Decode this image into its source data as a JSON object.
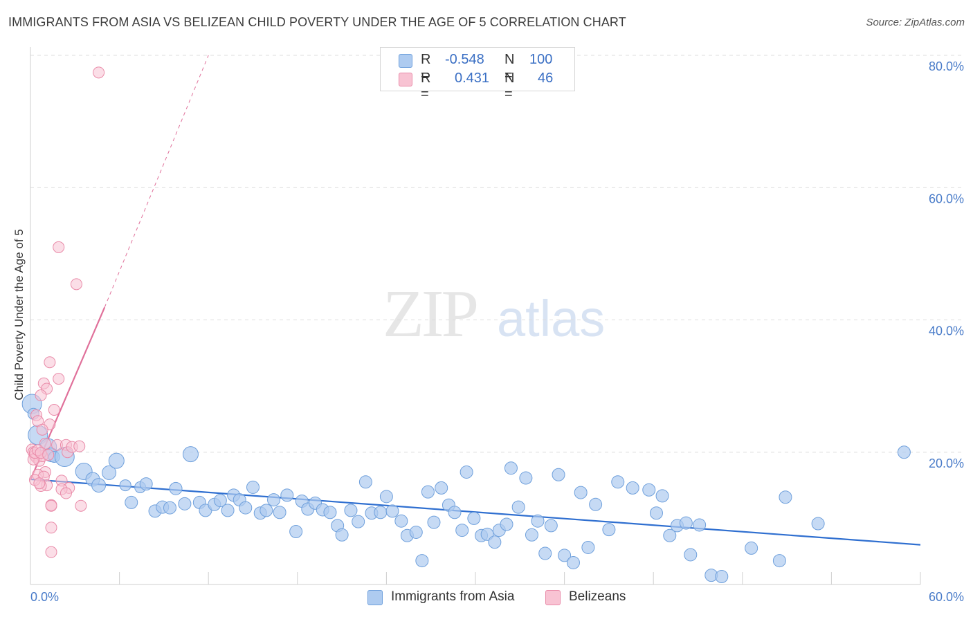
{
  "title": "IMMIGRANTS FROM ASIA VS BELIZEAN CHILD POVERTY UNDER THE AGE OF 5 CORRELATION CHART",
  "source": "Source: ZipAtlas.com",
  "watermark": {
    "zip": "ZIP",
    "atlas": "atlas"
  },
  "legend": {
    "rows": [
      {
        "r_label": "R =",
        "r_value": "-0.548",
        "n_label": "N =",
        "n_value": "100"
      },
      {
        "r_label": "R =",
        "r_value": "0.431",
        "n_label": "N =",
        "n_value": "46"
      }
    ]
  },
  "bottom_legend": {
    "asia": "Immigrants from Asia",
    "belize": "Belizeans"
  },
  "colors": {
    "asia_fill": "#aecbf0",
    "asia_stroke": "#6fa0dc",
    "asia_line": "#2f6fd0",
    "belize_fill": "#f8c3d3",
    "belize_stroke": "#e98aa8",
    "belize_line": "#e0709a",
    "grid": "#dcdcdc",
    "tick_text": "#4a7cc9"
  },
  "chart_data": {
    "type": "scatter",
    "xlabel": "",
    "ylabel": "Child Poverty Under the Age of 5",
    "xlim": [
      0,
      60
    ],
    "ylim": [
      0,
      80
    ],
    "x_ticks": [
      "0.0%",
      "60.0%"
    ],
    "y_ticks": [
      "20.0%",
      "40.0%",
      "60.0%",
      "80.0%"
    ],
    "grid": true,
    "legend_position": "top-center",
    "series": [
      {
        "name": "Immigrants from Asia",
        "color": "#aecbf0",
        "points": [
          [
            0.1,
            27.3,
            14
          ],
          [
            0.2,
            25.8,
            8
          ],
          [
            0.5,
            22.6,
            14
          ],
          [
            1.2,
            20.8,
            12
          ],
          [
            1.4,
            19.6,
            10
          ],
          [
            1.6,
            19.3,
            8
          ],
          [
            2.3,
            19.3,
            14
          ],
          [
            3.6,
            17.1,
            12
          ],
          [
            4.2,
            15.9,
            10
          ],
          [
            4.6,
            15.0,
            10
          ],
          [
            5.3,
            16.9,
            10
          ],
          [
            5.8,
            18.7,
            11
          ],
          [
            6.4,
            15.0,
            8
          ],
          [
            6.8,
            12.4,
            9
          ],
          [
            7.4,
            14.7,
            8
          ],
          [
            7.8,
            15.2,
            9
          ],
          [
            8.4,
            11.1,
            9
          ],
          [
            8.9,
            11.7,
            9
          ],
          [
            9.4,
            11.6,
            9
          ],
          [
            9.8,
            14.5,
            9
          ],
          [
            10.4,
            12.2,
            9
          ],
          [
            10.8,
            19.7,
            11
          ],
          [
            11.4,
            12.4,
            9
          ],
          [
            11.8,
            11.2,
            9
          ],
          [
            12.4,
            12.1,
            9
          ],
          [
            12.8,
            12.7,
            9
          ],
          [
            13.3,
            11.2,
            9
          ],
          [
            13.7,
            13.5,
            9
          ],
          [
            14.1,
            12.8,
            9
          ],
          [
            14.5,
            11.6,
            9
          ],
          [
            15.0,
            14.7,
            9
          ],
          [
            15.5,
            10.8,
            9
          ],
          [
            15.9,
            11.2,
            9
          ],
          [
            16.4,
            12.8,
            9
          ],
          [
            16.8,
            10.9,
            9
          ],
          [
            17.3,
            13.5,
            9
          ],
          [
            17.9,
            8.0,
            9
          ],
          [
            18.3,
            12.6,
            9
          ],
          [
            18.7,
            11.4,
            9
          ],
          [
            19.2,
            12.3,
            9
          ],
          [
            19.7,
            11.3,
            9
          ],
          [
            20.2,
            10.9,
            9
          ],
          [
            20.7,
            8.9,
            9
          ],
          [
            21.0,
            7.5,
            9
          ],
          [
            21.6,
            11.2,
            9
          ],
          [
            22.1,
            9.5,
            9
          ],
          [
            22.6,
            15.5,
            9
          ],
          [
            23.0,
            10.8,
            9
          ],
          [
            23.6,
            10.9,
            9
          ],
          [
            24.0,
            13.3,
            9
          ],
          [
            24.4,
            11.1,
            9
          ],
          [
            25.0,
            9.6,
            9
          ],
          [
            25.4,
            7.4,
            9
          ],
          [
            26.0,
            7.9,
            9
          ],
          [
            26.4,
            3.6,
            9
          ],
          [
            26.8,
            14.0,
            9
          ],
          [
            27.2,
            9.4,
            9
          ],
          [
            27.7,
            14.6,
            9
          ],
          [
            28.2,
            12.0,
            9
          ],
          [
            28.6,
            10.9,
            9
          ],
          [
            29.1,
            8.2,
            9
          ],
          [
            29.4,
            17.0,
            9
          ],
          [
            29.9,
            10.0,
            9
          ],
          [
            30.4,
            7.4,
            9
          ],
          [
            30.8,
            7.6,
            9
          ],
          [
            31.3,
            6.4,
            9
          ],
          [
            31.6,
            8.2,
            9
          ],
          [
            32.1,
            9.1,
            9
          ],
          [
            32.4,
            17.6,
            9
          ],
          [
            32.9,
            11.7,
            9
          ],
          [
            33.4,
            16.1,
            9
          ],
          [
            33.8,
            7.5,
            9
          ],
          [
            34.2,
            9.6,
            9
          ],
          [
            34.7,
            4.7,
            9
          ],
          [
            35.1,
            8.9,
            9
          ],
          [
            35.6,
            16.6,
            9
          ],
          [
            36.0,
            4.4,
            9
          ],
          [
            36.6,
            3.3,
            9
          ],
          [
            37.1,
            13.9,
            9
          ],
          [
            37.6,
            5.6,
            9
          ],
          [
            38.1,
            12.1,
            9
          ],
          [
            39.0,
            8.3,
            9
          ],
          [
            39.6,
            15.5,
            9
          ],
          [
            40.6,
            14.6,
            9
          ],
          [
            41.7,
            14.3,
            9
          ],
          [
            42.2,
            10.8,
            9
          ],
          [
            42.6,
            13.4,
            9
          ],
          [
            43.1,
            7.4,
            9
          ],
          [
            43.6,
            8.9,
            9
          ],
          [
            44.2,
            9.3,
            9
          ],
          [
            44.5,
            4.5,
            9
          ],
          [
            45.1,
            9.0,
            9
          ],
          [
            45.9,
            1.4,
            9
          ],
          [
            46.6,
            1.2,
            9
          ],
          [
            48.6,
            5.5,
            9
          ],
          [
            50.5,
            3.6,
            9
          ],
          [
            50.9,
            13.2,
            9
          ],
          [
            53.1,
            9.2,
            9
          ],
          [
            58.9,
            20.0,
            9
          ]
        ]
      },
      {
        "name": "Belizeans",
        "color": "#f8c3d3",
        "points": [
          [
            4.6,
            77.4,
            8
          ],
          [
            1.9,
            51.0,
            8
          ],
          [
            3.1,
            45.4,
            8
          ],
          [
            1.3,
            33.6,
            8
          ],
          [
            1.9,
            31.1,
            8
          ],
          [
            0.9,
            30.4,
            8
          ],
          [
            1.1,
            29.6,
            8
          ],
          [
            0.7,
            28.6,
            8
          ],
          [
            1.6,
            26.4,
            8
          ],
          [
            0.4,
            25.6,
            8
          ],
          [
            0.5,
            24.7,
            8
          ],
          [
            1.3,
            24.2,
            8
          ],
          [
            0.8,
            23.4,
            8
          ],
          [
            1.0,
            21.3,
            8
          ],
          [
            1.8,
            21.1,
            8
          ],
          [
            2.4,
            21.1,
            8
          ],
          [
            2.5,
            20.0,
            8
          ],
          [
            2.8,
            20.8,
            8
          ],
          [
            3.3,
            20.9,
            8
          ],
          [
            0.1,
            20.4,
            8
          ],
          [
            0.2,
            20.0,
            8
          ],
          [
            0.3,
            19.5,
            8
          ],
          [
            0.4,
            19.2,
            8
          ],
          [
            0.6,
            18.7,
            8
          ],
          [
            0.8,
            19.4,
            8
          ],
          [
            0.2,
            18.9,
            8
          ],
          [
            0.3,
            19.9,
            8
          ],
          [
            0.5,
            20.3,
            8
          ],
          [
            0.7,
            19.9,
            8
          ],
          [
            1.2,
            19.6,
            8
          ],
          [
            1.0,
            17.0,
            8
          ],
          [
            0.5,
            16.6,
            8
          ],
          [
            0.9,
            16.3,
            8
          ],
          [
            2.1,
            15.7,
            8
          ],
          [
            1.1,
            15.0,
            8
          ],
          [
            0.7,
            14.9,
            8
          ],
          [
            2.6,
            14.6,
            8
          ],
          [
            2.1,
            14.4,
            8
          ],
          [
            2.4,
            13.8,
            8
          ],
          [
            0.3,
            15.8,
            8
          ],
          [
            0.6,
            15.3,
            8
          ],
          [
            1.4,
            12.0,
            8
          ],
          [
            1.4,
            11.9,
            8
          ],
          [
            3.4,
            11.9,
            8
          ],
          [
            1.4,
            8.6,
            8
          ],
          [
            1.4,
            4.9,
            8
          ]
        ]
      }
    ],
    "trend_lines": [
      {
        "series": "Immigrants from Asia",
        "x": [
          0,
          60
        ],
        "y": [
          15.9,
          6.0
        ]
      },
      {
        "series": "Belizeans",
        "x": [
          0,
          5.0
        ],
        "y": [
          15.8,
          41.9
        ],
        "extrapolated_x": [
          5.0,
          12.0
        ],
        "extrapolated_y": [
          41.9,
          80.0
        ]
      }
    ]
  }
}
